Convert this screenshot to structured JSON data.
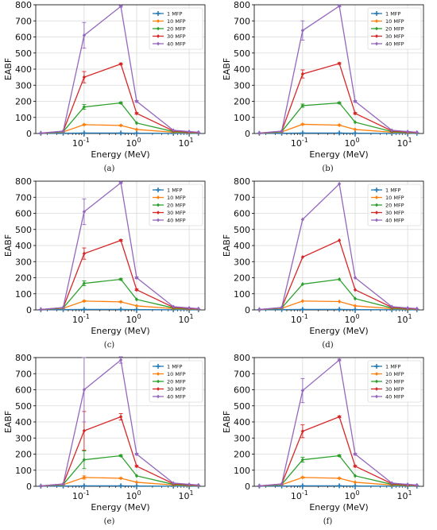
{
  "chart_data": [
    {
      "caption": "(a)",
      "type": "line",
      "xlabel": "Energy (MeV)",
      "ylabel": "EABF",
      "xscale": "log",
      "xlim": [
        0.012,
        20
      ],
      "ylim": [
        0,
        800
      ],
      "yticks": [
        0,
        100,
        200,
        300,
        400,
        500,
        600,
        700,
        800
      ],
      "xticks": [
        "10^-1",
        "10^0",
        "10^1"
      ],
      "grid": true,
      "legend_position": "top-right",
      "x": [
        0.015,
        0.04,
        0.1,
        0.5,
        1,
        5,
        10,
        15
      ],
      "series": [
        {
          "name": "1 MFP",
          "color": "#1f77b4",
          "marker": "plus",
          "values": [
            1,
            2,
            3,
            3,
            2,
            1,
            1,
            1
          ],
          "errors": [
            0,
            0,
            0,
            0,
            0,
            0,
            0,
            0
          ]
        },
        {
          "name": "10 MFP",
          "color": "#ff7f0e",
          "marker": "diamond",
          "values": [
            2,
            10,
            55,
            50,
            25,
            8,
            5,
            4
          ],
          "errors": [
            0,
            0,
            3,
            3,
            0,
            0,
            0,
            0
          ]
        },
        {
          "name": "20 MFP",
          "color": "#2ca02c",
          "marker": "diamond",
          "values": [
            2,
            12,
            165,
            190,
            65,
            12,
            7,
            5
          ],
          "errors": [
            0,
            0,
            15,
            5,
            0,
            0,
            0,
            0
          ]
        },
        {
          "name": "30 MFP",
          "color": "#d62728",
          "marker": "diamond",
          "values": [
            2,
            14,
            350,
            432,
            125,
            16,
            9,
            6
          ],
          "errors": [
            0,
            0,
            35,
            5,
            5,
            0,
            0,
            0
          ]
        },
        {
          "name": "40 MFP",
          "color": "#9467bd",
          "marker": "diamond",
          "values": [
            3,
            15,
            610,
            790,
            200,
            20,
            12,
            8
          ],
          "errors": [
            0,
            0,
            80,
            5,
            5,
            0,
            0,
            0
          ]
        }
      ]
    },
    {
      "caption": "(b)",
      "type": "line",
      "xlabel": "Energy (MeV)",
      "ylabel": "EABF",
      "xscale": "log",
      "xlim": [
        0.012,
        20
      ],
      "ylim": [
        0,
        800
      ],
      "yticks": [
        0,
        100,
        200,
        300,
        400,
        500,
        600,
        700,
        800
      ],
      "xticks": [
        "10^-1",
        "10^0",
        "10^1"
      ],
      "grid": true,
      "legend_position": "top-right",
      "x": [
        0.015,
        0.04,
        0.1,
        0.5,
        1,
        5,
        10,
        15
      ],
      "series": [
        {
          "name": "1 MFP",
          "color": "#1f77b4",
          "marker": "plus",
          "values": [
            1,
            2,
            3,
            3,
            2,
            1,
            1,
            1
          ],
          "errors": [
            0,
            0,
            0,
            0,
            0,
            0,
            0,
            0
          ]
        },
        {
          "name": "10 MFP",
          "color": "#ff7f0e",
          "marker": "diamond",
          "values": [
            2,
            10,
            57,
            52,
            25,
            8,
            5,
            4
          ],
          "errors": [
            0,
            0,
            3,
            3,
            0,
            0,
            0,
            0
          ]
        },
        {
          "name": "20 MFP",
          "color": "#2ca02c",
          "marker": "diamond",
          "values": [
            2,
            12,
            173,
            190,
            70,
            12,
            7,
            5
          ],
          "errors": [
            0,
            0,
            10,
            5,
            0,
            0,
            0,
            0
          ]
        },
        {
          "name": "30 MFP",
          "color": "#d62728",
          "marker": "diamond",
          "values": [
            2,
            14,
            370,
            435,
            125,
            16,
            9,
            6
          ],
          "errors": [
            0,
            0,
            25,
            5,
            5,
            0,
            0,
            0
          ]
        },
        {
          "name": "40 MFP",
          "color": "#9467bd",
          "marker": "diamond",
          "values": [
            3,
            15,
            640,
            792,
            200,
            20,
            12,
            8
          ],
          "errors": [
            0,
            0,
            60,
            5,
            5,
            0,
            0,
            0
          ]
        }
      ]
    },
    {
      "caption": "(c)",
      "type": "line",
      "xlabel": "Energy (MeV)",
      "ylabel": "EABF",
      "xscale": "log",
      "xlim": [
        0.012,
        20
      ],
      "ylim": [
        0,
        800
      ],
      "yticks": [
        0,
        100,
        200,
        300,
        400,
        500,
        600,
        700,
        800
      ],
      "xticks": [
        "10^-1",
        "10^0",
        "10^1"
      ],
      "grid": true,
      "legend_position": "top-right",
      "x": [
        0.015,
        0.04,
        0.1,
        0.5,
        1,
        5,
        10,
        15
      ],
      "series": [
        {
          "name": "1 MFP",
          "color": "#1f77b4",
          "marker": "plus",
          "values": [
            1,
            2,
            3,
            3,
            2,
            1,
            1,
            1
          ],
          "errors": [
            0,
            0,
            0,
            0,
            0,
            0,
            0,
            0
          ]
        },
        {
          "name": "10 MFP",
          "color": "#ff7f0e",
          "marker": "diamond",
          "values": [
            2,
            10,
            55,
            50,
            25,
            8,
            5,
            4
          ],
          "errors": [
            0,
            0,
            3,
            3,
            0,
            0,
            0,
            0
          ]
        },
        {
          "name": "20 MFP",
          "color": "#2ca02c",
          "marker": "diamond",
          "values": [
            2,
            12,
            165,
            190,
            65,
            12,
            7,
            5
          ],
          "errors": [
            0,
            0,
            15,
            5,
            0,
            0,
            0,
            0
          ]
        },
        {
          "name": "30 MFP",
          "color": "#d62728",
          "marker": "diamond",
          "values": [
            2,
            14,
            350,
            432,
            125,
            16,
            9,
            6
          ],
          "errors": [
            0,
            0,
            35,
            5,
            5,
            0,
            0,
            0
          ]
        },
        {
          "name": "40 MFP",
          "color": "#9467bd",
          "marker": "diamond",
          "values": [
            3,
            15,
            610,
            790,
            200,
            20,
            12,
            8
          ],
          "errors": [
            0,
            0,
            80,
            5,
            5,
            0,
            0,
            0
          ]
        }
      ]
    },
    {
      "caption": "(d)",
      "type": "line",
      "xlabel": "Energy (MeV)",
      "ylabel": "EABF",
      "xscale": "log",
      "xlim": [
        0.012,
        20
      ],
      "ylim": [
        0,
        800
      ],
      "yticks": [
        0,
        100,
        200,
        300,
        400,
        500,
        600,
        700,
        800
      ],
      "xticks": [
        "10^-1",
        "10^0",
        "10^1"
      ],
      "grid": true,
      "legend_position": "top-right",
      "x": [
        0.015,
        0.04,
        0.1,
        0.5,
        1,
        5,
        10,
        15
      ],
      "series": [
        {
          "name": "1 MFP",
          "color": "#1f77b4",
          "marker": "plus",
          "values": [
            1,
            2,
            3,
            3,
            2,
            1,
            1,
            1
          ],
          "errors": [
            0,
            0,
            0,
            0,
            0,
            0,
            0,
            0
          ]
        },
        {
          "name": "10 MFP",
          "color": "#ff7f0e",
          "marker": "diamond",
          "values": [
            2,
            10,
            55,
            52,
            25,
            8,
            5,
            4
          ],
          "errors": [
            0,
            0,
            0,
            0,
            0,
            0,
            0,
            0
          ]
        },
        {
          "name": "20 MFP",
          "color": "#2ca02c",
          "marker": "diamond",
          "values": [
            2,
            12,
            160,
            190,
            70,
            12,
            7,
            5
          ],
          "errors": [
            0,
            0,
            0,
            0,
            0,
            0,
            0,
            0
          ]
        },
        {
          "name": "30 MFP",
          "color": "#d62728",
          "marker": "diamond",
          "values": [
            2,
            14,
            328,
            432,
            125,
            16,
            9,
            6
          ],
          "errors": [
            0,
            0,
            0,
            0,
            0,
            0,
            0,
            0
          ]
        },
        {
          "name": "40 MFP",
          "color": "#9467bd",
          "marker": "diamond",
          "values": [
            3,
            15,
            562,
            783,
            200,
            20,
            12,
            8
          ],
          "errors": [
            0,
            0,
            0,
            0,
            0,
            0,
            0,
            0
          ]
        }
      ]
    },
    {
      "caption": "(e)",
      "type": "line",
      "xlabel": "Energy (MeV)",
      "ylabel": "EABF",
      "xscale": "log",
      "xlim": [
        0.012,
        20
      ],
      "ylim": [
        0,
        800
      ],
      "yticks": [
        0,
        100,
        200,
        300,
        400,
        500,
        600,
        700,
        800
      ],
      "xticks": [
        "10^-1",
        "10^0",
        "10^1"
      ],
      "grid": true,
      "legend_position": "top-right",
      "x": [
        0.015,
        0.04,
        0.1,
        0.5,
        1,
        5,
        10,
        15
      ],
      "series": [
        {
          "name": "1 MFP",
          "color": "#1f77b4",
          "marker": "plus",
          "values": [
            1,
            2,
            3,
            3,
            2,
            1,
            1,
            1
          ],
          "errors": [
            0,
            0,
            0,
            0,
            0,
            0,
            0,
            0
          ]
        },
        {
          "name": "10 MFP",
          "color": "#ff7f0e",
          "marker": "diamond",
          "values": [
            2,
            10,
            55,
            50,
            25,
            8,
            5,
            4
          ],
          "errors": [
            0,
            0,
            10,
            3,
            0,
            0,
            0,
            0
          ]
        },
        {
          "name": "20 MFP",
          "color": "#2ca02c",
          "marker": "diamond",
          "values": [
            2,
            12,
            165,
            190,
            65,
            12,
            7,
            5
          ],
          "errors": [
            0,
            0,
            55,
            5,
            0,
            0,
            0,
            0
          ]
        },
        {
          "name": "30 MFP",
          "color": "#d62728",
          "marker": "diamond",
          "values": [
            2,
            14,
            345,
            432,
            125,
            16,
            9,
            6
          ],
          "errors": [
            0,
            0,
            120,
            20,
            5,
            0,
            0,
            0
          ]
        },
        {
          "name": "40 MFP",
          "color": "#9467bd",
          "marker": "diamond",
          "values": [
            3,
            15,
            600,
            785,
            200,
            20,
            12,
            8
          ],
          "errors": [
            0,
            0,
            200,
            20,
            5,
            0,
            0,
            0
          ]
        }
      ]
    },
    {
      "caption": "(f)",
      "type": "line",
      "xlabel": "Energy (MeV)",
      "ylabel": "EABF",
      "xscale": "log",
      "xlim": [
        0.012,
        20
      ],
      "ylim": [
        0,
        800
      ],
      "yticks": [
        0,
        100,
        200,
        300,
        400,
        500,
        600,
        700,
        800
      ],
      "xticks": [
        "10^-1",
        "10^0",
        "10^1"
      ],
      "grid": true,
      "legend_position": "top-right",
      "x": [
        0.015,
        0.04,
        0.1,
        0.5,
        1,
        5,
        10,
        15
      ],
      "series": [
        {
          "name": "1 MFP",
          "color": "#1f77b4",
          "marker": "plus",
          "values": [
            1,
            2,
            3,
            3,
            2,
            1,
            1,
            1
          ],
          "errors": [
            0,
            0,
            0,
            0,
            0,
            0,
            0,
            0
          ]
        },
        {
          "name": "10 MFP",
          "color": "#ff7f0e",
          "marker": "diamond",
          "values": [
            2,
            10,
            55,
            50,
            25,
            8,
            5,
            4
          ],
          "errors": [
            0,
            0,
            3,
            3,
            0,
            0,
            0,
            0
          ]
        },
        {
          "name": "20 MFP",
          "color": "#2ca02c",
          "marker": "diamond",
          "values": [
            2,
            12,
            165,
            190,
            65,
            12,
            7,
            5
          ],
          "errors": [
            0,
            0,
            15,
            5,
            0,
            0,
            0,
            0
          ]
        },
        {
          "name": "30 MFP",
          "color": "#d62728",
          "marker": "diamond",
          "values": [
            2,
            14,
            342,
            432,
            125,
            16,
            9,
            6
          ],
          "errors": [
            0,
            0,
            40,
            5,
            5,
            0,
            0,
            0
          ]
        },
        {
          "name": "40 MFP",
          "color": "#9467bd",
          "marker": "diamond",
          "values": [
            3,
            15,
            595,
            785,
            200,
            20,
            12,
            8
          ],
          "errors": [
            0,
            0,
            75,
            5,
            5,
            0,
            0,
            0
          ]
        }
      ]
    }
  ]
}
